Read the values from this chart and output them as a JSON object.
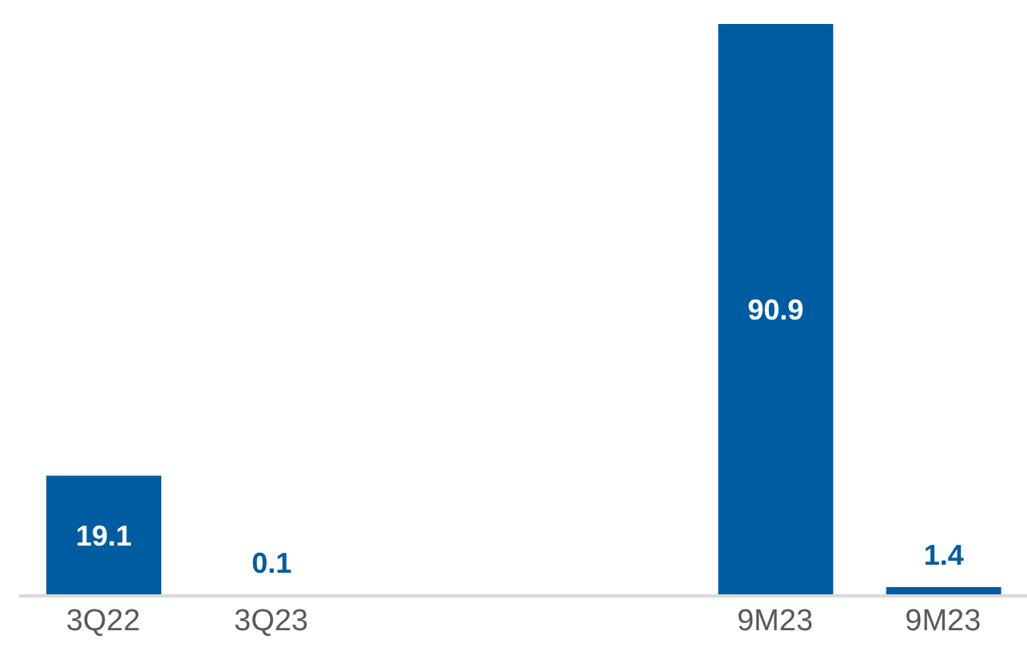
{
  "chart_data": {
    "type": "bar",
    "categories": [
      "3Q22",
      "3Q23",
      null,
      null,
      "9M23",
      "9M23"
    ],
    "values": [
      19.1,
      0.1,
      null,
      null,
      90.9,
      1.4
    ],
    "color": "#005ca1",
    "data_labels": true,
    "grid": false,
    "legend": false,
    "tick_labels": "x",
    "ylim": [
      0,
      90.9
    ]
  }
}
